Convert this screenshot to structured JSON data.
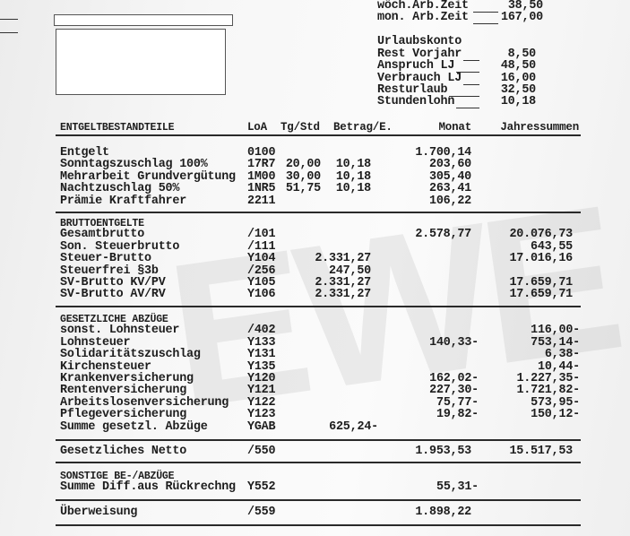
{
  "watermark": "EWE",
  "worktime": [
    {
      "label": "wöch.Arb.Zeit",
      "value": "38,50"
    },
    {
      "label": "mon. Arb.Zeit",
      "value": "167,00"
    }
  ],
  "vacation": {
    "title": "Urlaubskonto",
    "items": [
      {
        "label": "Rest Vorjahr",
        "value": "8,50"
      },
      {
        "label": "Anspruch LJ",
        "value": "48,50"
      },
      {
        "label": "Verbrauch LJ",
        "value": "16,00"
      },
      {
        "label": "Resturlaub",
        "value": "32,50"
      },
      {
        "label": "Stundenlohn",
        "value": "10,18"
      }
    ]
  },
  "header": {
    "col1": "ENTGELTBESTANDTEILE",
    "col2": "LoA",
    "col3": "Tg/Std",
    "col4": "Betrag/E.",
    "col5": "Monat",
    "col6": "Jahressummen"
  },
  "sections": [
    {
      "title": "",
      "rows": [
        {
          "label": "Entgelt",
          "loa": "0100",
          "tg": "",
          "betrag": "",
          "monat": "1.700,14",
          "jahr": ""
        },
        {
          "label": "Sonntagszuschlag 100%",
          "loa": "17R7",
          "tg": "20,00",
          "betrag": "10,18",
          "monat": "203,60",
          "jahr": ""
        },
        {
          "label": "Mehrarbeit Grundvergütung",
          "loa": "1M00",
          "tg": "30,00",
          "betrag": "10,18",
          "monat": "305,40",
          "jahr": ""
        },
        {
          "label": "Nachtzuschlag 50%",
          "loa": "1NR5",
          "tg": "51,75",
          "betrag": "10,18",
          "monat": "263,41",
          "jahr": ""
        },
        {
          "label": "Prämie Kraftfahrer",
          "loa": "2211",
          "tg": "",
          "betrag": "",
          "monat": "106,22",
          "jahr": ""
        }
      ]
    },
    {
      "title": "BRUTTOENTGELTE",
      "rows": [
        {
          "label": "Gesamtbrutto",
          "loa": "/101",
          "tg": "",
          "betrag": "",
          "monat": "2.578,77",
          "jahr": "20.076,73"
        },
        {
          "label": "Son. Steuerbrutto",
          "loa": "/111",
          "tg": "",
          "betrag": "",
          "monat": "",
          "jahr": "643,55"
        },
        {
          "label": "Steuer-Brutto",
          "loa": "Y104",
          "tg": "",
          "betrag": "2.331,27",
          "monat": "",
          "jahr": "17.016,16"
        },
        {
          "label": "Steuerfrei §3b",
          "loa": "/256",
          "tg": "",
          "betrag": "247,50",
          "monat": "",
          "jahr": ""
        },
        {
          "label": "SV-Brutto KV/PV",
          "loa": "Y105",
          "tg": "",
          "betrag": "2.331,27",
          "monat": "",
          "jahr": "17.659,71"
        },
        {
          "label": "SV-Brutto AV/RV",
          "loa": "Y106",
          "tg": "",
          "betrag": "2.331,27",
          "monat": "",
          "jahr": "17.659,71"
        }
      ]
    },
    {
      "title": "GESETZLICHE ABZÜGE",
      "rows": [
        {
          "label": "sonst. Lohnsteuer",
          "loa": "/402",
          "tg": "",
          "betrag": "",
          "monat": "",
          "jahr": "116,00-"
        },
        {
          "label": "Lohnsteuer",
          "loa": "Y133",
          "tg": "",
          "betrag": "",
          "monat": "140,33-",
          "jahr": "753,14-"
        },
        {
          "label": "Solidaritätszuschlag",
          "loa": "Y131",
          "tg": "",
          "betrag": "",
          "monat": "",
          "jahr": "6,38-"
        },
        {
          "label": "Kirchensteuer",
          "loa": "Y135",
          "tg": "",
          "betrag": "",
          "monat": "",
          "jahr": "10,44-"
        },
        {
          "label": "Krankenversicherung",
          "loa": "Y120",
          "tg": "",
          "betrag": "",
          "monat": "162,02-",
          "jahr": "1.227,35-"
        },
        {
          "label": "Rentenversicherung",
          "loa": "Y121",
          "tg": "",
          "betrag": "",
          "monat": "227,30-",
          "jahr": "1.721,82-"
        },
        {
          "label": "Arbeitslosenversicherung",
          "loa": "Y122",
          "tg": "",
          "betrag": "",
          "monat": "75,77-",
          "jahr": "573,95-"
        },
        {
          "label": "Pflegeversicherung",
          "loa": "Y123",
          "tg": "",
          "betrag": "",
          "monat": "19,82-",
          "jahr": "150,12-"
        },
        {
          "label": "Summe gesetzl. Abzüge",
          "loa": "YGAB",
          "tg": "",
          "betrag": "625,24-",
          "monat": "",
          "jahr": ""
        }
      ]
    },
    {
      "title": "",
      "rows": [
        {
          "label": "Gesetzliches Netto",
          "loa": "/550",
          "tg": "",
          "betrag": "",
          "monat": "1.953,53",
          "jahr": "15.517,53"
        }
      ]
    },
    {
      "title": "SONSTIGE BE-/ABZÜGE",
      "rows": [
        {
          "label": "Summe Diff.aus Rückrechng",
          "loa": "Y552",
          "tg": "",
          "betrag": "",
          "monat": "55,31-",
          "jahr": ""
        }
      ]
    },
    {
      "title": "",
      "rows": [
        {
          "label": "Überweisung",
          "loa": "/559",
          "tg": "",
          "betrag": "",
          "monat": "1.898,22",
          "jahr": ""
        }
      ]
    }
  ]
}
